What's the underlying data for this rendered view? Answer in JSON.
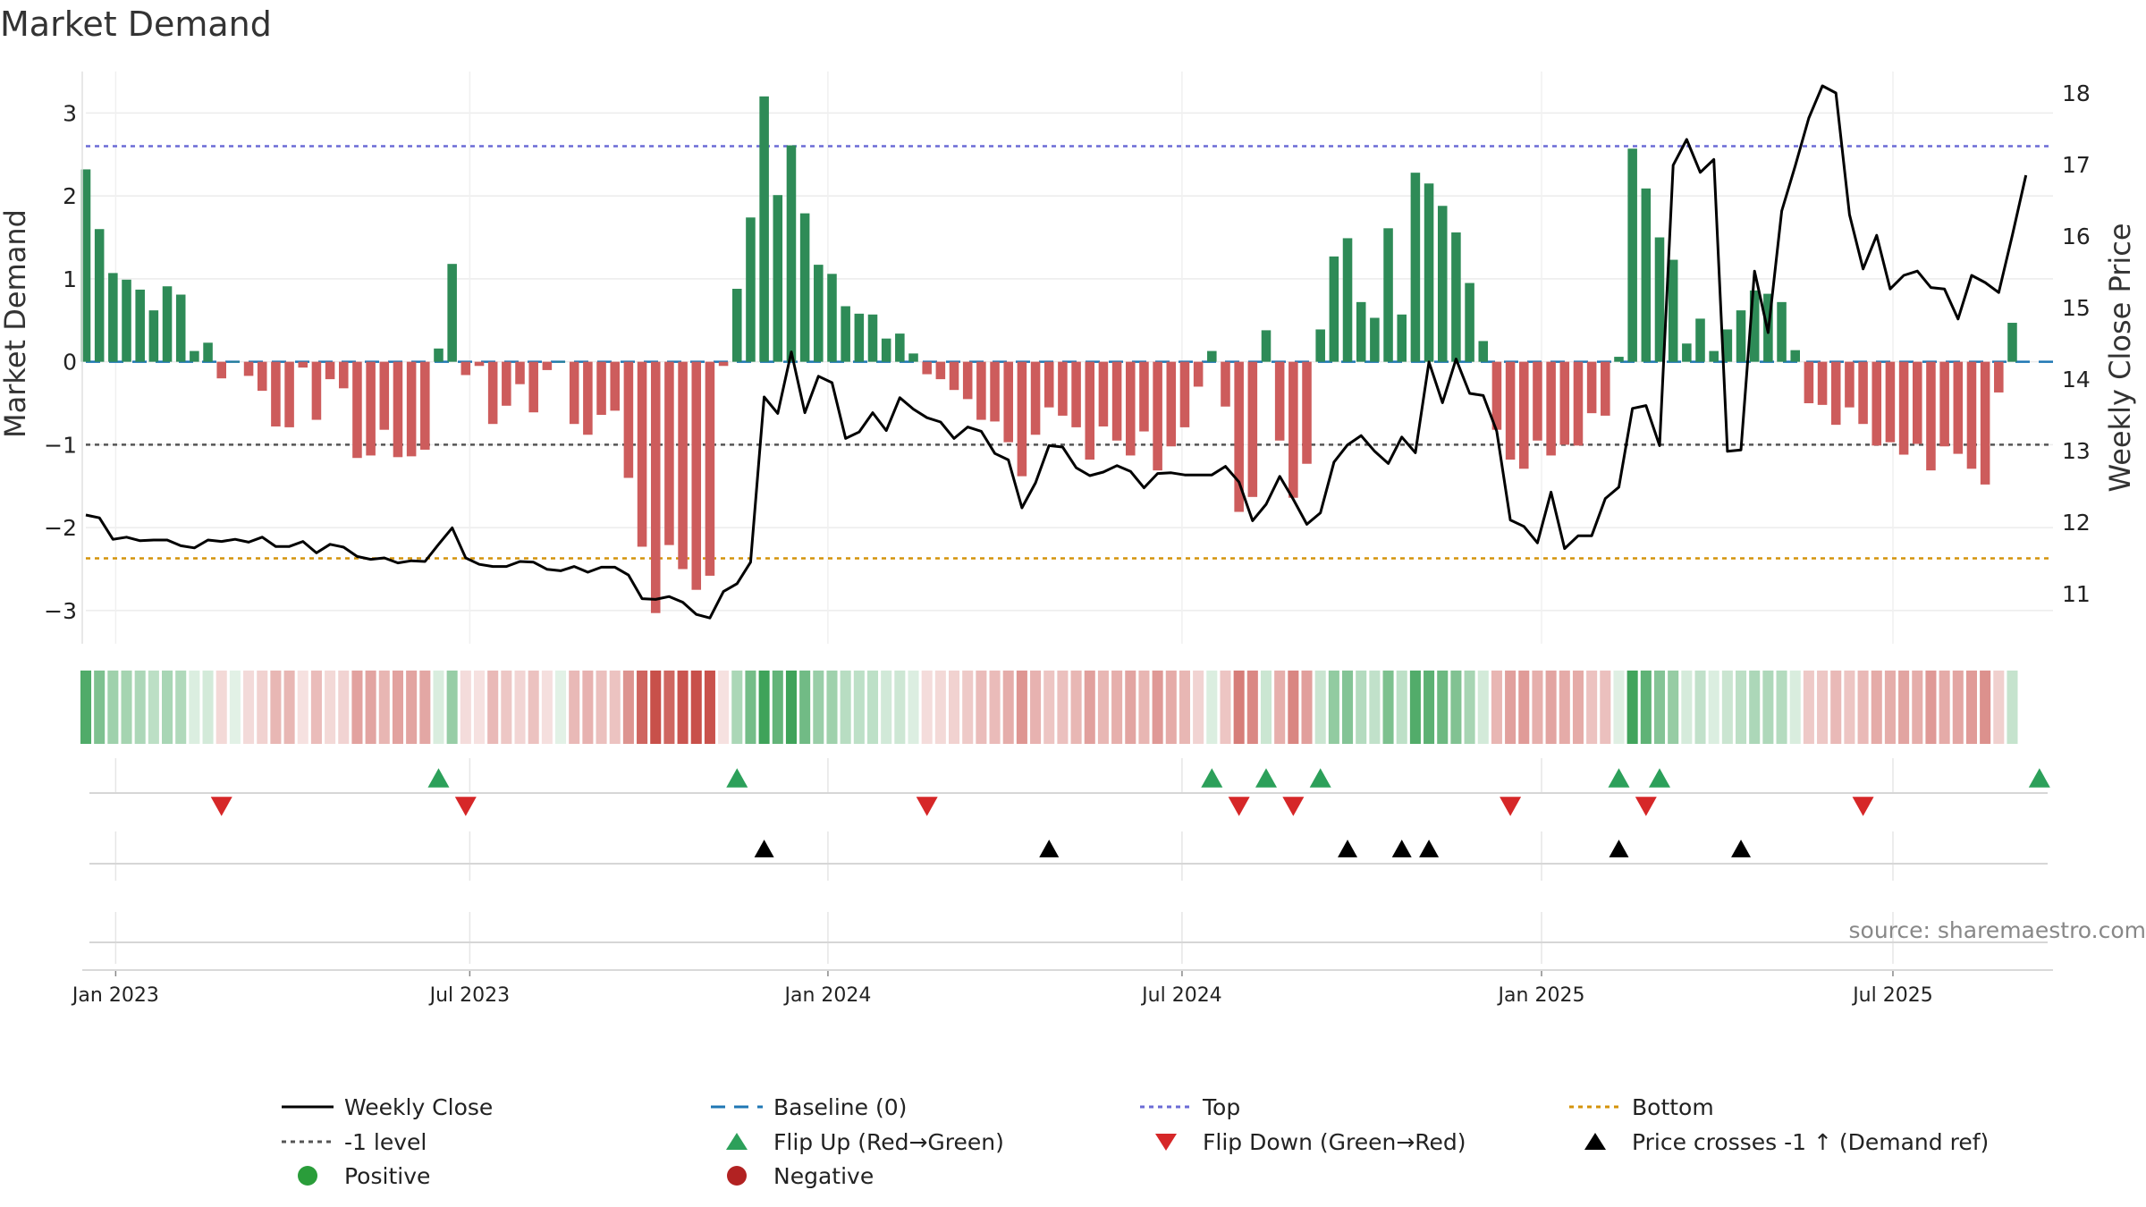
{
  "chart_data": {
    "type": "bar",
    "title": "Market Demand",
    "ylabel": "Market Demand",
    "y2label": "Weekly Close Price",
    "ylim": [
      -3.4,
      3.5
    ],
    "y2lim": [
      10.3,
      18.3
    ],
    "y_ticks": [
      -3,
      -2,
      -1,
      0,
      1,
      2,
      3
    ],
    "y_tick_labels": [
      "−3",
      "−2",
      "−1",
      "0",
      "1",
      "2",
      "3"
    ],
    "y2_ticks": [
      11,
      12,
      13,
      14,
      15,
      16,
      17,
      18
    ],
    "y2_tick_labels": [
      "11",
      "12",
      "13",
      "14",
      "15",
      "16",
      "17",
      "18"
    ],
    "x_range_weeks": [
      0,
      145
    ],
    "x_ticks": [
      {
        "week": 2.2,
        "label": "Jan 2023"
      },
      {
        "week": 28.3,
        "label": "Jul 2023"
      },
      {
        "week": 54.7,
        "label": "Jan 2024"
      },
      {
        "week": 80.8,
        "label": "Jul 2024"
      },
      {
        "week": 107.3,
        "label": "Jan 2025"
      },
      {
        "week": 133.2,
        "label": "Jul 2025"
      }
    ],
    "reference_lines": {
      "top": 2.6,
      "minus_one": -1,
      "bottom": -2.37,
      "baseline": 0
    },
    "demand": [
      2.32,
      1.6,
      1.07,
      0.99,
      0.87,
      0.62,
      0.91,
      0.81,
      0.13,
      0.23,
      -0.2,
      0,
      -0.17,
      -0.35,
      -0.78,
      -0.79,
      -0.07,
      -0.7,
      -0.21,
      -0.32,
      -1.16,
      -1.13,
      -0.82,
      -1.15,
      -1.14,
      -1.06,
      0.16,
      1.18,
      -0.16,
      -0.05,
      -0.75,
      -0.53,
      -0.27,
      -0.61,
      -0.1,
      0,
      -0.75,
      -0.88,
      -0.64,
      -0.59,
      -1.4,
      -2.23,
      -3.03,
      -2.21,
      -2.5,
      -2.75,
      -2.58,
      -0.05,
      0.88,
      1.74,
      3.2,
      2.01,
      2.61,
      1.79,
      1.17,
      1.06,
      0.67,
      0.58,
      0.57,
      0.28,
      0.34,
      0.1,
      -0.15,
      -0.21,
      -0.34,
      -0.45,
      -0.7,
      -0.72,
      -0.97,
      -1.38,
      -0.88,
      -0.55,
      -0.65,
      -0.79,
      -1.18,
      -0.78,
      -0.95,
      -1.13,
      -0.84,
      -1.31,
      -1.02,
      -0.79,
      -0.3,
      0.13,
      -0.54,
      -1.81,
      -1.63,
      0.38,
      -0.95,
      -1.64,
      -1.23,
      0.39,
      1.27,
      1.49,
      0.72,
      0.53,
      1.61,
      0.57,
      2.28,
      2.15,
      1.88,
      1.56,
      0.95,
      0.25,
      -0.82,
      -1.18,
      -1.29,
      -0.95,
      -1.13,
      -1.0,
      -1.01,
      -0.62,
      -0.65,
      0.06,
      2.57,
      2.09,
      1.5,
      1.23,
      0.22,
      0.52,
      0.13,
      0.39,
      0.62,
      0.86,
      0.82,
      0.72,
      0.14,
      -0.5,
      -0.52,
      -0.76,
      -0.55,
      -0.75,
      -1.01,
      -0.97,
      -1.12,
      -0.99,
      -1.31,
      -1.02,
      -1.11,
      -1.29,
      -1.48,
      -0.37,
      0.47
    ],
    "weekly_close": [
      12.1,
      12.06,
      11.76,
      11.79,
      11.74,
      11.75,
      11.75,
      11.67,
      11.64,
      11.75,
      11.73,
      11.76,
      11.72,
      11.79,
      11.66,
      11.66,
      11.73,
      11.57,
      11.69,
      11.65,
      11.52,
      11.48,
      11.5,
      11.43,
      11.46,
      11.45,
      11.69,
      11.92,
      11.5,
      11.41,
      11.38,
      11.38,
      11.45,
      11.44,
      11.34,
      11.32,
      11.38,
      11.3,
      11.37,
      11.37,
      11.26,
      10.93,
      10.92,
      10.96,
      10.88,
      10.71,
      10.66,
      11.03,
      11.14,
      11.44,
      13.75,
      13.52,
      14.38,
      13.53,
      14.04,
      13.95,
      13.17,
      13.26,
      13.53,
      13.28,
      13.74,
      13.58,
      13.46,
      13.4,
      13.17,
      13.33,
      13.27,
      12.96,
      12.87,
      12.2,
      12.55,
      13.07,
      13.05,
      12.76,
      12.65,
      12.7,
      12.79,
      12.71,
      12.48,
      12.68,
      12.69,
      12.66,
      12.66,
      12.66,
      12.78,
      12.56,
      12.02,
      12.25,
      12.64,
      12.32,
      11.97,
      12.13,
      12.84,
      13.08,
      13.21,
      12.99,
      12.82,
      13.19,
      12.97,
      14.24,
      13.67,
      14.28,
      13.8,
      13.77,
      13.27,
      12.03,
      11.94,
      11.71,
      12.42,
      11.63,
      11.81,
      11.81,
      12.33,
      12.49,
      13.59,
      13.63,
      13.07,
      16.99,
      17.35,
      16.89,
      17.07,
      12.99,
      13.01,
      15.51,
      14.65,
      16.35,
      16.98,
      17.65,
      18.1,
      18.0,
      16.3,
      15.54,
      16.01,
      15.26,
      15.45,
      15.51,
      15.28,
      15.26,
      14.84,
      15.45,
      15.35,
      15.21,
      16.01,
      16.85
    ],
    "flip_up_weeks": [
      26,
      48,
      83,
      87,
      91,
      113,
      116,
      144
    ],
    "flip_down_weeks": [
      10,
      28,
      62,
      85,
      89,
      105,
      115,
      131
    ],
    "price_cross_weeks": [
      50,
      71,
      93,
      97,
      99,
      113,
      122
    ],
    "legend": [
      {
        "label": "Weekly Close",
        "type": "line",
        "color": "#000000"
      },
      {
        "label": "Baseline (0)",
        "type": "dashed",
        "color": "#1f77b4"
      },
      {
        "label": "Top",
        "type": "dotted",
        "color": "#6b6bd6"
      },
      {
        "label": "Bottom",
        "type": "dotted",
        "color": "#d4930a"
      },
      {
        "label": "-1 level",
        "type": "dotted",
        "color": "#555555"
      },
      {
        "label": "Flip Up (Red→Green)",
        "type": "tri-up",
        "color": "#2ca05a"
      },
      {
        "label": "Flip Down (Green→Red)",
        "type": "tri-down",
        "color": "#d62728"
      },
      {
        "label": "Price crosses -1 ↑ (Demand ref)",
        "type": "tri-up",
        "color": "#000000"
      },
      {
        "label": "Positive",
        "type": "dot",
        "color": "#2a9d3a"
      },
      {
        "label": "Negative",
        "type": "dot",
        "color": "#b22222"
      }
    ],
    "source": "source: sharemaestro.com"
  },
  "colors": {
    "positive_bar": "#2e8b57",
    "negative_bar": "#cd5c5c",
    "heat_positive": "#3fa35a",
    "heat_negative": "#c8504a",
    "close_line": "#000000"
  }
}
